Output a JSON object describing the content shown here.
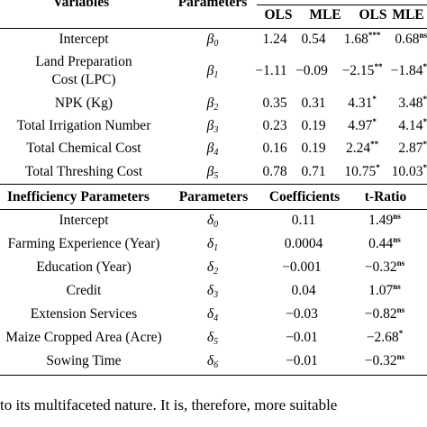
{
  "header": {
    "variables": "Variables",
    "parameters": "Parameters",
    "ols1": "OLS",
    "mle1": "MLE",
    "ols2": "OLS",
    "mle2": "MLE"
  },
  "rows": [
    {
      "variable": "Intercept",
      "param": "β",
      "sub": "0",
      "ols": "1.24",
      "mle": "0.54",
      "t_ols": "1.68",
      "t_ols_sup": "***",
      "t_mle": "0.68",
      "t_mle_sup": "ns"
    },
    {
      "variable_line1": "Land Preparation",
      "variable_line2": "Cost (LPC)",
      "param": "β",
      "sub": "1",
      "ols": "−1.11",
      "mle": "−0.09",
      "t_ols": "−2.15",
      "t_ols_sup": "**",
      "t_mle": "−1.84",
      "t_mle_sup": "*"
    },
    {
      "variable": "NPK (Kg)",
      "param": "β",
      "sub": "2",
      "ols": "0.35",
      "mle": "0.31",
      "t_ols": "4.31",
      "t_ols_sup": "*",
      "t_mle": "3.48",
      "t_mle_sup": "*"
    },
    {
      "variable": "Total Irrigation Number",
      "param": "β",
      "sub": "3",
      "ols": "0.23",
      "mle": "0.19",
      "t_ols": "4.97",
      "t_ols_sup": "*",
      "t_mle": "4.14",
      "t_mle_sup": "*"
    },
    {
      "variable": "Total Chemical Cost",
      "param": "β",
      "sub": "4",
      "ols": "0.16",
      "mle": "0.19",
      "t_ols": "2.24",
      "t_ols_sup": "**",
      "t_mle": "2.87",
      "t_mle_sup": "*"
    },
    {
      "variable": "Total Threshing Cost",
      "param": "β",
      "sub": "5",
      "ols": "0.78",
      "mle": "0.71",
      "t_ols": "10.75",
      "t_ols_sup": "*",
      "t_mle": "10.03",
      "t_mle_sup": "*"
    }
  ],
  "ineff_header": {
    "title": "Inefficiency Parameters",
    "parameters": "Parameters",
    "coefficients": "Coefficients",
    "tratio": "t-Ratio"
  },
  "ineff_rows": [
    {
      "variable": "Intercept",
      "param": "δ",
      "sub": "0",
      "coef": "0.11",
      "t": "1.49",
      "t_sup": "ns"
    },
    {
      "variable": "Farming Experience (Year)",
      "param": "δ",
      "sub": "1",
      "coef": "0.0004",
      "t": "0.44",
      "t_sup": "ns"
    },
    {
      "variable": "Education (Year)",
      "param": "δ",
      "sub": "2",
      "coef": "−0.001",
      "t": "−0.32",
      "t_sup": "ns"
    },
    {
      "variable": "Credit",
      "param": "δ",
      "sub": "3",
      "coef": "0.04",
      "t": "1.07",
      "t_sup": "ns"
    },
    {
      "variable": "Extension Services",
      "param": "δ",
      "sub": "4",
      "coef": "−0.03",
      "t": "−0.82",
      "t_sup": "ns"
    },
    {
      "variable": "Maize Cropped Area (Acre)",
      "param": "δ",
      "sub": "5",
      "coef": "−0.01",
      "t": "−2.68",
      "t_sup": "*"
    },
    {
      "variable": "Sowing Time",
      "param": "δ",
      "sub": "6",
      "coef": "−0.01",
      "t": "−0.32",
      "t_sup": "ns"
    }
  ],
  "paragraph": {
    "line1": "to its multifaceted nature. It is, therefore, more suitable"
  }
}
